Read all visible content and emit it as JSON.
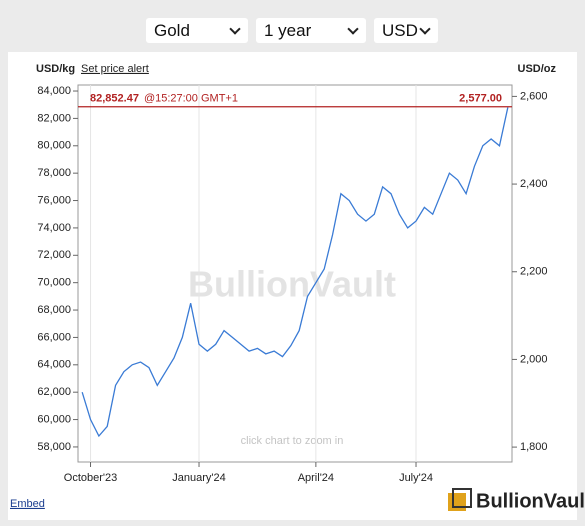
{
  "controls": {
    "metal": "Gold",
    "period": "1 year",
    "currency": "USD"
  },
  "chart_data": {
    "type": "line",
    "left_unit": "USD/kg",
    "alert_link": "Set price alert",
    "right_unit": "USD/oz",
    "watermark": "BullionVault",
    "zoom_hint": "click chart to zoom in",
    "current_price": {
      "value": 82852.47,
      "label": "82,852.47"
    },
    "current_time": "@15:27:00 GMT+1",
    "current_price_oz": {
      "value": 2577,
      "label": "2,577.00"
    },
    "color": "#3a7bd5",
    "price_line_color": "#b22222",
    "grid": true,
    "categories": [
      null,
      "October'23",
      null,
      null,
      null,
      null,
      null,
      null,
      null,
      null,
      null,
      null,
      null,
      null,
      "January'24",
      null,
      null,
      null,
      null,
      null,
      null,
      null,
      null,
      null,
      null,
      null,
      null,
      null,
      "April'24",
      null,
      null,
      null,
      null,
      null,
      null,
      null,
      null,
      null,
      null,
      null,
      "July'24",
      null,
      null,
      null,
      null,
      null,
      null,
      null,
      null,
      null,
      null,
      null
    ],
    "series": [
      {
        "name": "Gold",
        "values": [
          62000,
          60000,
          58800,
          59500,
          62500,
          63500,
          64000,
          64200,
          63800,
          62500,
          63500,
          64500,
          66000,
          68500,
          65500,
          65000,
          65500,
          66500,
          66000,
          65500,
          65000,
          65200,
          64800,
          65000,
          64600,
          65400,
          66500,
          69000,
          70000,
          71000,
          73500,
          76500,
          76000,
          75000,
          74500,
          75000,
          77000,
          76500,
          75000,
          74000,
          74500,
          75500,
          75000,
          76500,
          78000,
          77500,
          76500,
          78500,
          80000,
          80500,
          80000,
          82800
        ]
      }
    ],
    "ylim": [
      56900,
      84440
    ],
    "yticks": [
      {
        "value": 58000,
        "label": "58,000"
      },
      {
        "value": 60000,
        "label": "60,000"
      },
      {
        "value": 62000,
        "label": "62,000"
      },
      {
        "value": 64000,
        "label": "64,000"
      },
      {
        "value": 66000,
        "label": "66,000"
      },
      {
        "value": 68000,
        "label": "68,000"
      },
      {
        "value": 70000,
        "label": "70,000"
      },
      {
        "value": 72000,
        "label": "72,000"
      },
      {
        "value": 74000,
        "label": "74,000"
      },
      {
        "value": 76000,
        "label": "76,000"
      },
      {
        "value": 78000,
        "label": "78,000"
      },
      {
        "value": 80000,
        "label": "80,000"
      },
      {
        "value": 82000,
        "label": "82,000"
      },
      {
        "value": 84000,
        "label": "84,000"
      }
    ],
    "y2lim": [
      1766,
      2626
    ],
    "y2ticks": [
      {
        "value": 1800,
        "label": "1,800"
      },
      {
        "value": 2000,
        "label": "2,000"
      },
      {
        "value": 2200,
        "label": "2,200"
      },
      {
        "value": 2400,
        "label": "2,400"
      },
      {
        "value": 2600,
        "label": "2,600"
      }
    ]
  },
  "footer": {
    "embed": "Embed",
    "logo": "BullionVault"
  }
}
